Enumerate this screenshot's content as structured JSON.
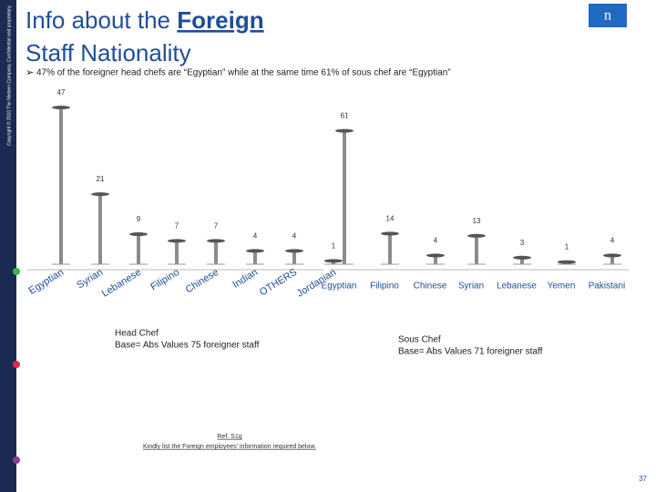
{
  "header": {
    "title_pre": "Info about the ",
    "title_emph": "Foreign",
    "title_post": " Staff Nationality",
    "bullet": "47%  of the foreigner head chefs are “Egyptian” while at the same time  61% of sous chef are “Egyptian”",
    "copyright": "Copyright © 2010 The Nielsen Company. Confidential and proprietary."
  },
  "chart_data": [
    {
      "type": "bar",
      "title": "Head Chef",
      "subtitle": "Base= Abs Values 75 foreigner staff",
      "categories": [
        "Egyptian",
        "Syrian",
        "Lebanese",
        "Filipino",
        "Chinese",
        "Indian",
        "OTHERS",
        "Jordanian"
      ],
      "values": [
        47,
        21,
        9,
        7,
        7,
        4,
        4,
        1
      ],
      "color": "#8c8c8c"
    },
    {
      "type": "bar",
      "title": "Sous Chef",
      "subtitle": "Base= Abs Values 71 foreigner staff",
      "categories": [
        "Egyptian",
        "Filipino",
        "Chinese",
        "Syrian",
        "Lebanese",
        "Yemen",
        "Pakistani"
      ],
      "values": [
        61,
        14,
        4,
        13,
        3,
        1,
        4
      ],
      "color": "#8c8c8c"
    }
  ],
  "footer": {
    "ref": "Ref. S1g",
    "question": "Kindly list the Foreign employees’ information required below.",
    "page": "37"
  }
}
